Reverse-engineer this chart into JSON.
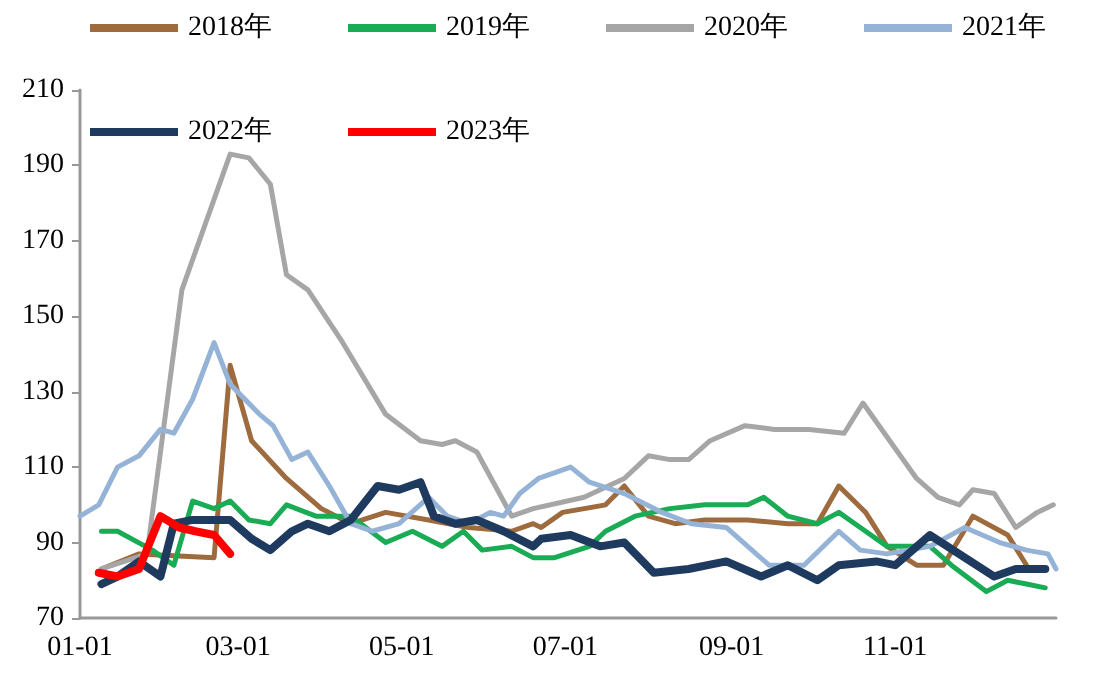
{
  "chart_data": {
    "type": "line",
    "legend": "top",
    "marker": "none",
    "line_style": "solid",
    "grid": false,
    "xlim": [
      "--01-01",
      "--12-31"
    ],
    "xticks": [
      {
        "value": "--01-01",
        "label": "01-01"
      },
      {
        "value": "--03-01",
        "label": "03-01"
      },
      {
        "value": "--05-01",
        "label": "05-01"
      },
      {
        "value": "--07-01",
        "label": "07-01"
      },
      {
        "value": "--09-01",
        "label": "09-01"
      },
      {
        "value": "--11-01",
        "label": "11-01"
      }
    ],
    "ylim": [
      70,
      210
    ],
    "yticks": [
      70,
      90,
      110,
      130,
      150,
      170,
      190,
      210
    ],
    "series": [
      {
        "name": "2018年",
        "color": "#9e6b3e",
        "x": [
          "--01-09",
          "--01-23",
          "--02-20",
          "--02-26",
          "--03-06",
          "--03-19",
          "--04-01",
          "--04-12",
          "--04-25",
          "--05-11",
          "--05-26",
          "--06-11",
          "--06-19",
          "--06-22",
          "--06-30",
          "--07-16",
          "--07-23",
          "--08-01",
          "--08-11",
          "--08-22",
          "--09-07",
          "--09-22",
          "--10-03",
          "--10-11",
          "--10-21",
          "--10-29",
          "--11-09",
          "--11-19",
          "--11-30",
          "--12-13",
          "--12-20"
        ],
        "values": [
          83,
          87,
          86,
          137,
          117,
          107,
          99,
          95,
          98,
          96,
          94,
          93,
          95,
          94,
          98,
          100,
          105,
          97,
          95,
          96,
          96,
          95,
          95,
          105,
          98,
          89,
          84,
          84,
          97,
          92,
          84
        ]
      },
      {
        "name": "2019年",
        "color": "#1aab55",
        "x": [
          "--01-09",
          "--01-15",
          "--01-28",
          "--02-05",
          "--02-12",
          "--02-20",
          "--02-26",
          "--03-05",
          "--03-13",
          "--03-19",
          "--03-30",
          "--04-12",
          "--04-25",
          "--05-05",
          "--05-16",
          "--05-24",
          "--05-31",
          "--06-11",
          "--06-19",
          "--06-27",
          "--07-10",
          "--07-16",
          "--07-27",
          "--08-09",
          "--08-22",
          "--09-07",
          "--09-13",
          "--09-22",
          "--10-03",
          "--10-11",
          "--10-19",
          "--10-29",
          "--11-14",
          "--11-22",
          "--12-05",
          "--12-13",
          "--12-20",
          "--12-27"
        ],
        "values": [
          93,
          93,
          88,
          84,
          101,
          99,
          101,
          96,
          95,
          100,
          97,
          97,
          90,
          93,
          89,
          93,
          88,
          89,
          86,
          86,
          89,
          93,
          97,
          99,
          100,
          100,
          102,
          97,
          95,
          98,
          94,
          89,
          89,
          84,
          77,
          80,
          79,
          78
        ]
      },
      {
        "name": "2020年",
        "color": "#a6a6a6",
        "x": [
          "--01-09",
          "--01-26",
          "--02-08",
          "--02-20",
          "--02-26",
          "--03-05",
          "--03-13",
          "--03-19",
          "--03-27",
          "--04-09",
          "--04-25",
          "--05-08",
          "--05-16",
          "--05-21",
          "--05-29",
          "--06-11",
          "--06-19",
          "--07-08",
          "--07-23",
          "--08-01",
          "--08-09",
          "--08-16",
          "--08-24",
          "--09-06",
          "--09-17",
          "--09-30",
          "--10-13",
          "--10-20",
          "--10-29",
          "--11-09",
          "--11-17",
          "--11-25",
          "--11-30",
          "--12-08",
          "--12-16",
          "--12-24",
          "--12-30"
        ],
        "values": [
          83,
          87,
          157,
          181,
          193,
          192,
          185,
          161,
          157,
          143,
          124,
          117,
          116,
          117,
          114,
          97,
          99,
          102,
          107,
          113,
          112,
          112,
          117,
          121,
          120,
          120,
          119,
          127,
          118,
          107,
          102,
          100,
          104,
          103,
          94,
          98,
          100
        ]
      },
      {
        "name": "2021年",
        "color": "#95b3d7",
        "x": [
          "--01-01",
          "--01-08",
          "--01-15",
          "--01-23",
          "--01-31",
          "--02-05",
          "--02-12",
          "--02-20",
          "--02-26",
          "--03-09",
          "--03-14",
          "--03-21",
          "--03-27",
          "--04-04",
          "--04-12",
          "--04-20",
          "--04-30",
          "--05-11",
          "--05-18",
          "--05-26",
          "--06-03",
          "--06-08",
          "--06-14",
          "--06-21",
          "--07-03",
          "--07-10",
          "--07-23",
          "--08-06",
          "--08-17",
          "--08-30",
          "--09-15",
          "--09-28",
          "--10-11",
          "--10-19",
          "--10-29",
          "--11-14",
          "--11-27",
          "--12-10",
          "--12-20",
          "--12-28",
          "--12-31"
        ],
        "values": [
          97,
          100,
          110,
          113,
          120,
          119,
          128,
          143,
          132,
          124,
          121,
          112,
          114,
          105,
          95,
          93,
          95,
          102,
          97,
          95,
          98,
          97,
          103,
          107,
          110,
          106,
          103,
          98,
          95,
          94,
          84,
          84,
          93,
          88,
          87,
          89,
          94,
          90,
          88,
          87,
          83
        ]
      },
      {
        "name": "2022年",
        "color": "#1f3a5f",
        "x": [
          "--01-09",
          "--01-15",
          "--01-23",
          "--01-31",
          "--02-05",
          "--02-12",
          "--02-20",
          "--02-26",
          "--03-06",
          "--03-13",
          "--03-21",
          "--03-27",
          "--04-04",
          "--04-12",
          "--04-22",
          "--04-30",
          "--05-08",
          "--05-13",
          "--05-21",
          "--05-29",
          "--06-08",
          "--06-19",
          "--06-22",
          "--07-03",
          "--07-14",
          "--07-23",
          "--08-03",
          "--08-16",
          "--08-30",
          "--09-12",
          "--09-22",
          "--10-03",
          "--10-11",
          "--10-25",
          "--11-01",
          "--11-14",
          "--11-27",
          "--12-08",
          "--12-16",
          "--12-27"
        ],
        "values": [
          79,
          81,
          85,
          81,
          95,
          96,
          96,
          96,
          91,
          88,
          93,
          95,
          93,
          96,
          105,
          104,
          106,
          97,
          95,
          96,
          93,
          89,
          91,
          92,
          89,
          90,
          82,
          83,
          85,
          81,
          84,
          80,
          84,
          85,
          84,
          92,
          86,
          81,
          83,
          83
        ]
      },
      {
        "name": "2023年",
        "color": "#ff0000",
        "x": [
          "--01-08",
          "--01-15",
          "--01-23",
          "--01-31",
          "--02-07",
          "--02-13",
          "--02-20",
          "--02-26"
        ],
        "values": [
          82,
          81,
          83,
          97,
          94,
          93,
          92,
          87
        ]
      }
    ]
  }
}
